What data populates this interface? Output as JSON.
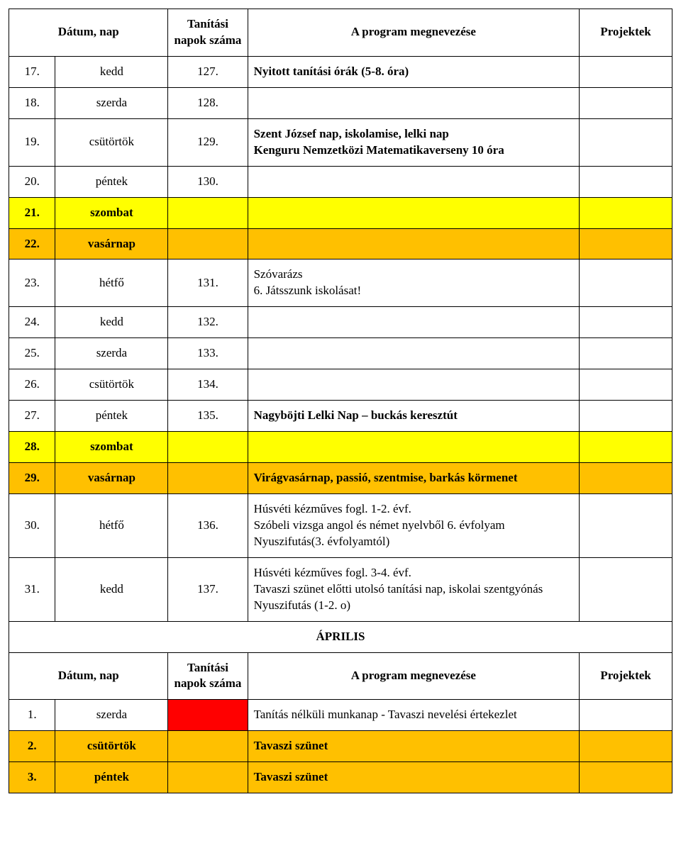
{
  "colors": {
    "yellow": "#ffff00",
    "orange": "#ffc000",
    "red": "#ff0000",
    "border": "#000000",
    "background": "#ffffff"
  },
  "typography": {
    "font_family": "Times New Roman",
    "base_fontsize_pt": 13,
    "line_height": 1.35
  },
  "header": {
    "datum_nap": "Dátum, nap",
    "tanitasi": "Tanítási napok száma",
    "program": "A program megnevezése",
    "projektek": "Projektek"
  },
  "month_label": "ÁPRILIS",
  "rows": [
    {
      "num": "17.",
      "day": "kedd",
      "count": "127.",
      "prog": "Nyitott tanítási órák (5-8. óra)",
      "progBold": true
    },
    {
      "num": "18.",
      "day": "szerda",
      "count": "128.",
      "prog": ""
    },
    {
      "num": "19.",
      "day": "csütörtök",
      "count": "129.",
      "prog": "Szent József nap, iskolamise, lelki nap\nKenguru Nemzetközi Matematikaverseny 10 óra",
      "progBold": true
    },
    {
      "num": "20.",
      "day": "péntek",
      "count": "130.",
      "prog": ""
    },
    {
      "num": "21.",
      "day": "szombat",
      "row_bg": "yellow",
      "boldRow": true
    },
    {
      "num": "22.",
      "day": "vasárnap",
      "row_bg": "orange",
      "boldRow": true
    },
    {
      "num": "23.",
      "day": "hétfő",
      "count": "131.",
      "prog": "Szóvarázs\n6. Játsszunk iskolásat!"
    },
    {
      "num": "24.",
      "day": "kedd",
      "count": "132.",
      "prog": ""
    },
    {
      "num": "25.",
      "day": "szerda",
      "count": "133.",
      "prog": ""
    },
    {
      "num": "26.",
      "day": "csütörtök",
      "count": "134.",
      "prog": ""
    },
    {
      "num": "27.",
      "day": "péntek",
      "count": "135.",
      "prog": "Nagyböjti Lelki Nap – buckás keresztút",
      "progBold": true
    },
    {
      "num": "28.",
      "day": "szombat",
      "row_bg": "yellow",
      "boldRow": true
    },
    {
      "num": "29.",
      "day": "vasárnap",
      "row_bg": "orange",
      "boldRow": true,
      "prog": "Virágvasárnap, passió, szentmise, barkás körmenet",
      "progBold": true
    },
    {
      "num": "30.",
      "day": "hétfő",
      "count": "136.",
      "prog": "Húsvéti kézműves fogl. 1-2. évf.\nSzóbeli vizsga angol és német nyelvből 6. évfolyam\nNyuszifutás(3. évfolyamtól)"
    },
    {
      "num": "31.",
      "day": "kedd",
      "count": "137.",
      "prog": "Húsvéti kézműves fogl. 3-4. évf.\nTavaszi szünet előtti utolsó tanítási nap, iskolai szentgyónás\nNyuszifutás (1-2. o)"
    }
  ],
  "rows2": [
    {
      "num": "1.",
      "day": "szerda",
      "count_bg": "red",
      "prog": "Tanítás nélküli munkanap - Tavaszi nevelési értekezlet"
    },
    {
      "num": "2.",
      "day": "csütörtök",
      "row_bg": "orange",
      "boldRow": true,
      "prog": "Tavaszi szünet",
      "progBold": true
    },
    {
      "num": "3.",
      "day": "péntek",
      "row_bg": "orange",
      "boldRow": true,
      "prog": "Tavaszi szünet",
      "progBold": true
    }
  ]
}
